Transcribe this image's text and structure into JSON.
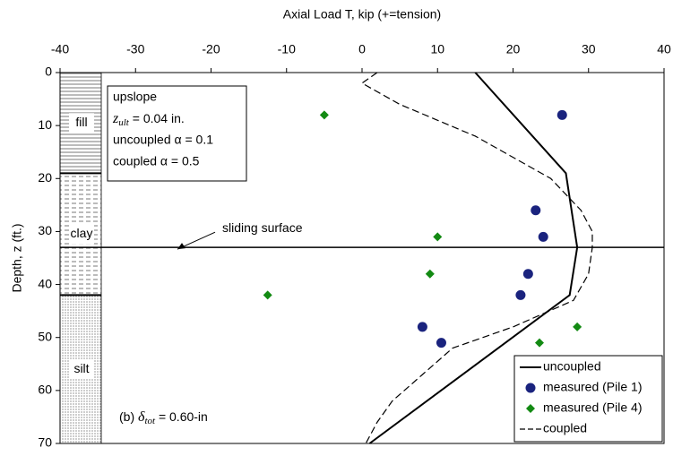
{
  "chart_data": {
    "type": "line",
    "title": "Axial Load T, kip (+=tension)",
    "ylabel": "Depth, z (ft.)",
    "xlim": [
      -40,
      40
    ],
    "xticks": [
      -40,
      -30,
      -20,
      -10,
      0,
      10,
      20,
      30,
      40
    ],
    "ylim": [
      0,
      70
    ],
    "yticks": [
      0,
      10,
      20,
      30,
      40,
      50,
      60,
      70
    ],
    "y_inverted": true,
    "legend": "lower right",
    "layers": [
      {
        "label": "fill",
        "top": 0,
        "bottom": 19
      },
      {
        "label": "clay",
        "top": 19,
        "bottom": 42
      },
      {
        "label": "silt",
        "top": 42,
        "bottom": 70
      }
    ],
    "sliding_surface": {
      "text": "sliding surface",
      "depth": 33
    },
    "info_box": {
      "lines": [
        "upslope",
        {
          "symbol": "z",
          "sub": "ult",
          "text": " = 0.04 in."
        },
        "uncoupled α = 0.1",
        "coupled α = 0.5"
      ]
    },
    "case_label": {
      "prefix": "(b) ",
      "symbol": "δ",
      "sub": "tot",
      "text": " = 0.60-in"
    },
    "series": [
      {
        "name": "uncoupled",
        "color": "#000000",
        "style": "solid",
        "x": [
          15,
          27,
          28.5,
          27.5,
          1
        ],
        "values": [
          0,
          19,
          33,
          42,
          70
        ]
      },
      {
        "name": "measured (Pile 1)",
        "color": "#1a237e",
        "style": "circle",
        "x": [
          26.5,
          23,
          24,
          22,
          21,
          8,
          10.5
        ],
        "values": [
          8,
          26,
          31,
          38,
          42,
          48,
          51
        ]
      },
      {
        "name": "measured (Pile 4)",
        "color": "#138a13",
        "style": "diamond",
        "x": [
          -5,
          10,
          9,
          -12.5,
          28.5,
          23.5
        ],
        "values": [
          8,
          31,
          38,
          42,
          48,
          51
        ]
      },
      {
        "name": "coupled",
        "color": "#000000",
        "style": "dashed",
        "x": [
          2,
          0,
          5,
          15,
          25,
          29,
          30.5,
          30.5,
          30,
          28,
          20,
          12,
          8,
          4,
          2,
          0.5
        ],
        "values": [
          0,
          2,
          6,
          12,
          20,
          26,
          30,
          33,
          38,
          43,
          48,
          52,
          57,
          62,
          66,
          70
        ]
      }
    ]
  }
}
